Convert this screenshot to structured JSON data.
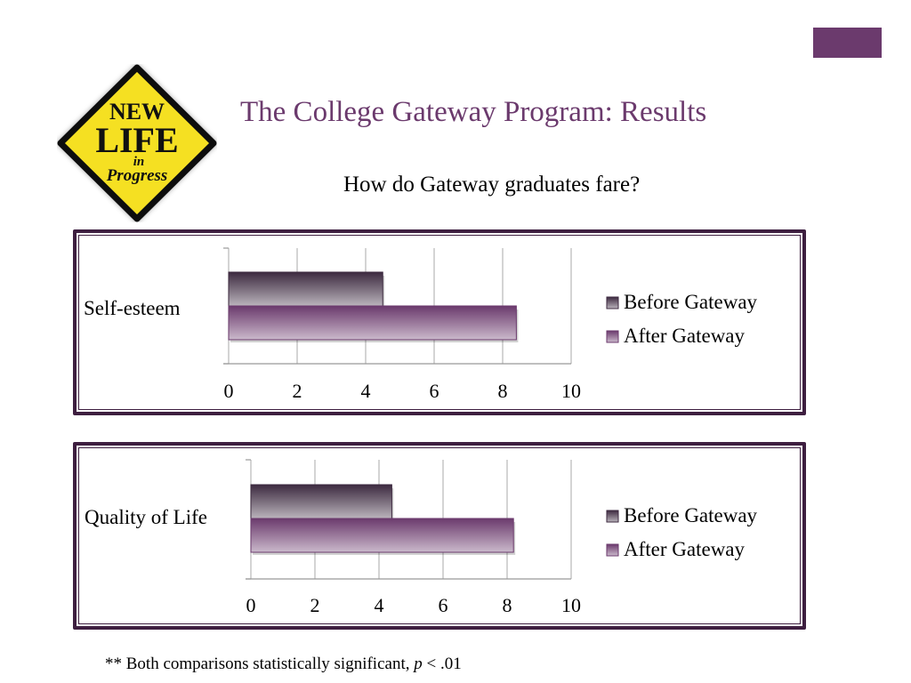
{
  "slide": {
    "title": "The College Gateway Program: Results",
    "subtitle": "How do Gateway graduates fare?",
    "footnote_prefix": "** Both comparisons statistically significant, ",
    "footnote_p": "p",
    "footnote_suffix": " < .01",
    "accent_color": "#6b3a6d"
  },
  "logo": {
    "line1": "NEW",
    "line2": "LIFE",
    "line3": "in",
    "line4": "Progress",
    "sign_color": "#f5e024"
  },
  "chart_data": [
    {
      "type": "bar",
      "orientation": "horizontal",
      "categories": [
        "Self-esteem"
      ],
      "series": [
        {
          "name": "Before Gateway",
          "values": [
            4.5
          ],
          "color": "#3d2a40"
        },
        {
          "name": "After Gateway",
          "values": [
            8.4
          ],
          "color": "#6b3a6d"
        }
      ],
      "xticks": [
        "0",
        "2",
        "4",
        "6",
        "8",
        "10"
      ],
      "xlim": [
        0,
        10
      ],
      "grid": true,
      "legend": "right"
    },
    {
      "type": "bar",
      "orientation": "horizontal",
      "categories": [
        "Quality of Life"
      ],
      "series": [
        {
          "name": "Before Gateway",
          "values": [
            4.4
          ],
          "color": "#3d2a40"
        },
        {
          "name": "After Gateway",
          "values": [
            8.2
          ],
          "color": "#6b3a6d"
        }
      ],
      "xticks": [
        "0",
        "2",
        "4",
        "6",
        "8",
        "10"
      ],
      "xlim": [
        0,
        10
      ],
      "grid": true,
      "legend": "right"
    }
  ]
}
